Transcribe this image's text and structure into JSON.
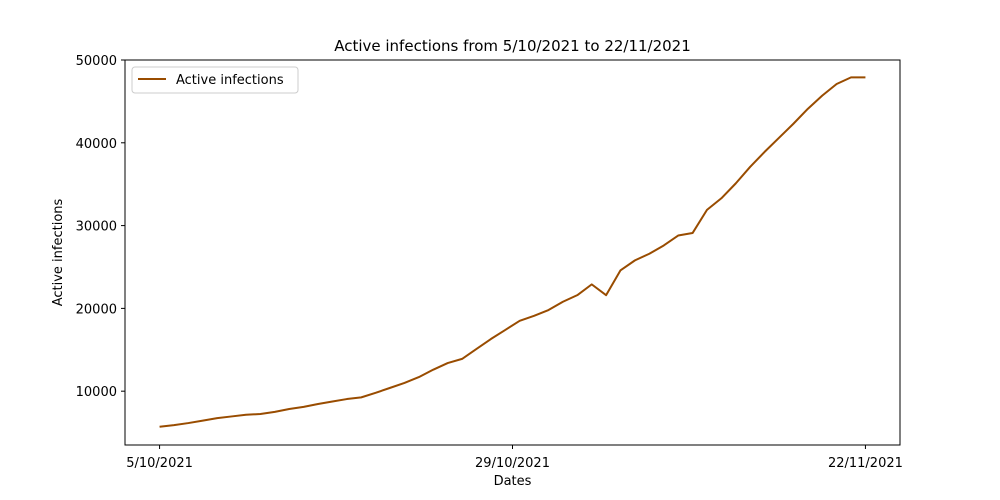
{
  "chart_data": {
    "type": "line",
    "title": "Active infections from 5/10/2021 to 22/11/2021",
    "xlabel": "Dates",
    "ylabel": "Active infections",
    "ylim": [
      3500,
      50000
    ],
    "xlim": [
      -2.4,
      51.4
    ],
    "grid": false,
    "legend_position": "top-left",
    "x_ticks": [
      {
        "x": 0,
        "label": "5/10/2021"
      },
      {
        "x": 24.5,
        "label": "29/10/2021"
      },
      {
        "x": 49,
        "label": "22/11/2021"
      }
    ],
    "y_ticks": [
      10000,
      20000,
      30000,
      40000,
      50000
    ],
    "series": [
      {
        "name": "Active infections",
        "color": "#994c00",
        "x": [
          0,
          1,
          2,
          3,
          4,
          5,
          6,
          7,
          8,
          9,
          10,
          11,
          12,
          13,
          14,
          15,
          16,
          17,
          18,
          19,
          20,
          21,
          22,
          23,
          24,
          25,
          26,
          27,
          28,
          29,
          30,
          31,
          32,
          33,
          34,
          35,
          36,
          37,
          38,
          39,
          40,
          41,
          42,
          43,
          44,
          45,
          46,
          47,
          48,
          49
        ],
        "y": [
          5700,
          5900,
          6150,
          6450,
          6750,
          6950,
          7150,
          7250,
          7500,
          7850,
          8100,
          8450,
          8750,
          9050,
          9250,
          9800,
          10400,
          11000,
          11700,
          12600,
          13400,
          13900,
          15100,
          16300,
          17400,
          18500,
          19100,
          19800,
          20800,
          21600,
          22900,
          21600,
          24600,
          25800,
          26600,
          27600,
          28800,
          29100,
          31900,
          33300,
          35100,
          37100,
          38900,
          40600,
          42300,
          44100,
          45700,
          47100,
          47900,
          47900
        ]
      }
    ]
  }
}
